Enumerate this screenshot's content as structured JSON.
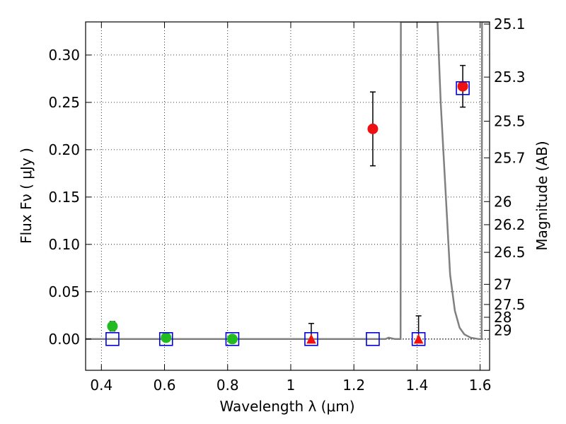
{
  "chart_data": {
    "type": "scatter",
    "xlabel": "Wavelength  λ (μm)",
    "ylabel": "Flux  Fν  ( μJy )",
    "y2label": "Magnitude (AB)",
    "xlim": [
      0.35,
      1.63
    ],
    "ylim": [
      -0.033,
      0.335
    ],
    "grid": true,
    "x_ticks": [
      0.4,
      0.6,
      0.8,
      1.0,
      1.2,
      1.4,
      1.6
    ],
    "x_tick_labels": [
      "0.4",
      "0.6",
      "0.8",
      "1",
      "1.2",
      "1.4",
      "1.6"
    ],
    "y_ticks": [
      0.0,
      0.05,
      0.1,
      0.15,
      0.2,
      0.25,
      0.3
    ],
    "y_tick_labels": [
      "0.00",
      "0.05",
      "0.10",
      "0.15",
      "0.20",
      "0.25",
      "0.30"
    ],
    "y2_ticks": [
      {
        "label": "25.1",
        "flux": 0.3327
      },
      {
        "label": "25.3",
        "flux": 0.2767
      },
      {
        "label": "25.5",
        "flux": 0.2301
      },
      {
        "label": "25.7",
        "flux": 0.1914
      },
      {
        "label": "26",
        "flux": 0.1452
      },
      {
        "label": "26.2",
        "flux": 0.1208
      },
      {
        "label": "26.5",
        "flux": 0.0916
      },
      {
        "label": "27",
        "flux": 0.0578
      },
      {
        "label": "27.5",
        "flux": 0.0365
      },
      {
        "label": "28",
        "flux": 0.023
      },
      {
        "label": "29",
        "flux": 0.0092
      }
    ],
    "series": [
      {
        "marker": "circle",
        "color": "#22bb22",
        "points": [
          {
            "x": 0.435,
            "y": 0.0135,
            "err_lo": 0.005,
            "err_hi": 0.005
          },
          {
            "x": 0.605,
            "y": 0.0015,
            "err_lo": 0.004,
            "err_hi": 0.004
          },
          {
            "x": 0.815,
            "y": 0.0,
            "err_lo": 0.004,
            "err_hi": 0.004
          }
        ]
      },
      {
        "marker": "circle",
        "color": "#ee1111",
        "points": [
          {
            "x": 1.26,
            "y": 0.222,
            "err_lo": 0.039,
            "err_hi": 0.039
          },
          {
            "x": 1.545,
            "y": 0.267,
            "err_lo": 0.022,
            "err_hi": 0.022
          }
        ]
      },
      {
        "marker": "triangle",
        "color": "#ee1111",
        "points": [
          {
            "x": 1.065,
            "y": 0.0,
            "err_lo": 0.0,
            "err_hi": 0.0165
          },
          {
            "x": 1.405,
            "y": 0.0,
            "err_lo": 0.0,
            "err_hi": 0.0245
          }
        ]
      },
      {
        "marker": "square-open",
        "color": "#0000dd",
        "points": [
          {
            "x": 0.435,
            "y": 0.0
          },
          {
            "x": 0.605,
            "y": 0.0
          },
          {
            "x": 0.815,
            "y": 0.0
          },
          {
            "x": 1.065,
            "y": 0.0
          },
          {
            "x": 1.26,
            "y": 0.0
          },
          {
            "x": 1.405,
            "y": 0.0
          },
          {
            "x": 1.545,
            "y": 0.265
          }
        ]
      }
    ],
    "model_line": {
      "color": "#808080",
      "points": [
        [
          0.35,
          0.0
        ],
        [
          1.3,
          0.0
        ],
        [
          1.31,
          0.0015
        ],
        [
          1.33,
          0.0
        ],
        [
          1.348,
          0.0
        ],
        [
          1.349,
          0.335
        ],
        [
          1.465,
          0.335
        ],
        [
          1.475,
          0.25
        ],
        [
          1.49,
          0.16
        ],
        [
          1.505,
          0.068
        ],
        [
          1.52,
          0.03
        ],
        [
          1.535,
          0.012
        ],
        [
          1.55,
          0.005
        ],
        [
          1.57,
          0.0015
        ],
        [
          1.595,
          0.0
        ],
        [
          1.605,
          0.0
        ],
        [
          1.606,
          0.335
        ],
        [
          1.63,
          0.335
        ]
      ]
    },
    "zero_line": {
      "y": 0.0,
      "color": "#000000",
      "style": "dotted"
    }
  }
}
